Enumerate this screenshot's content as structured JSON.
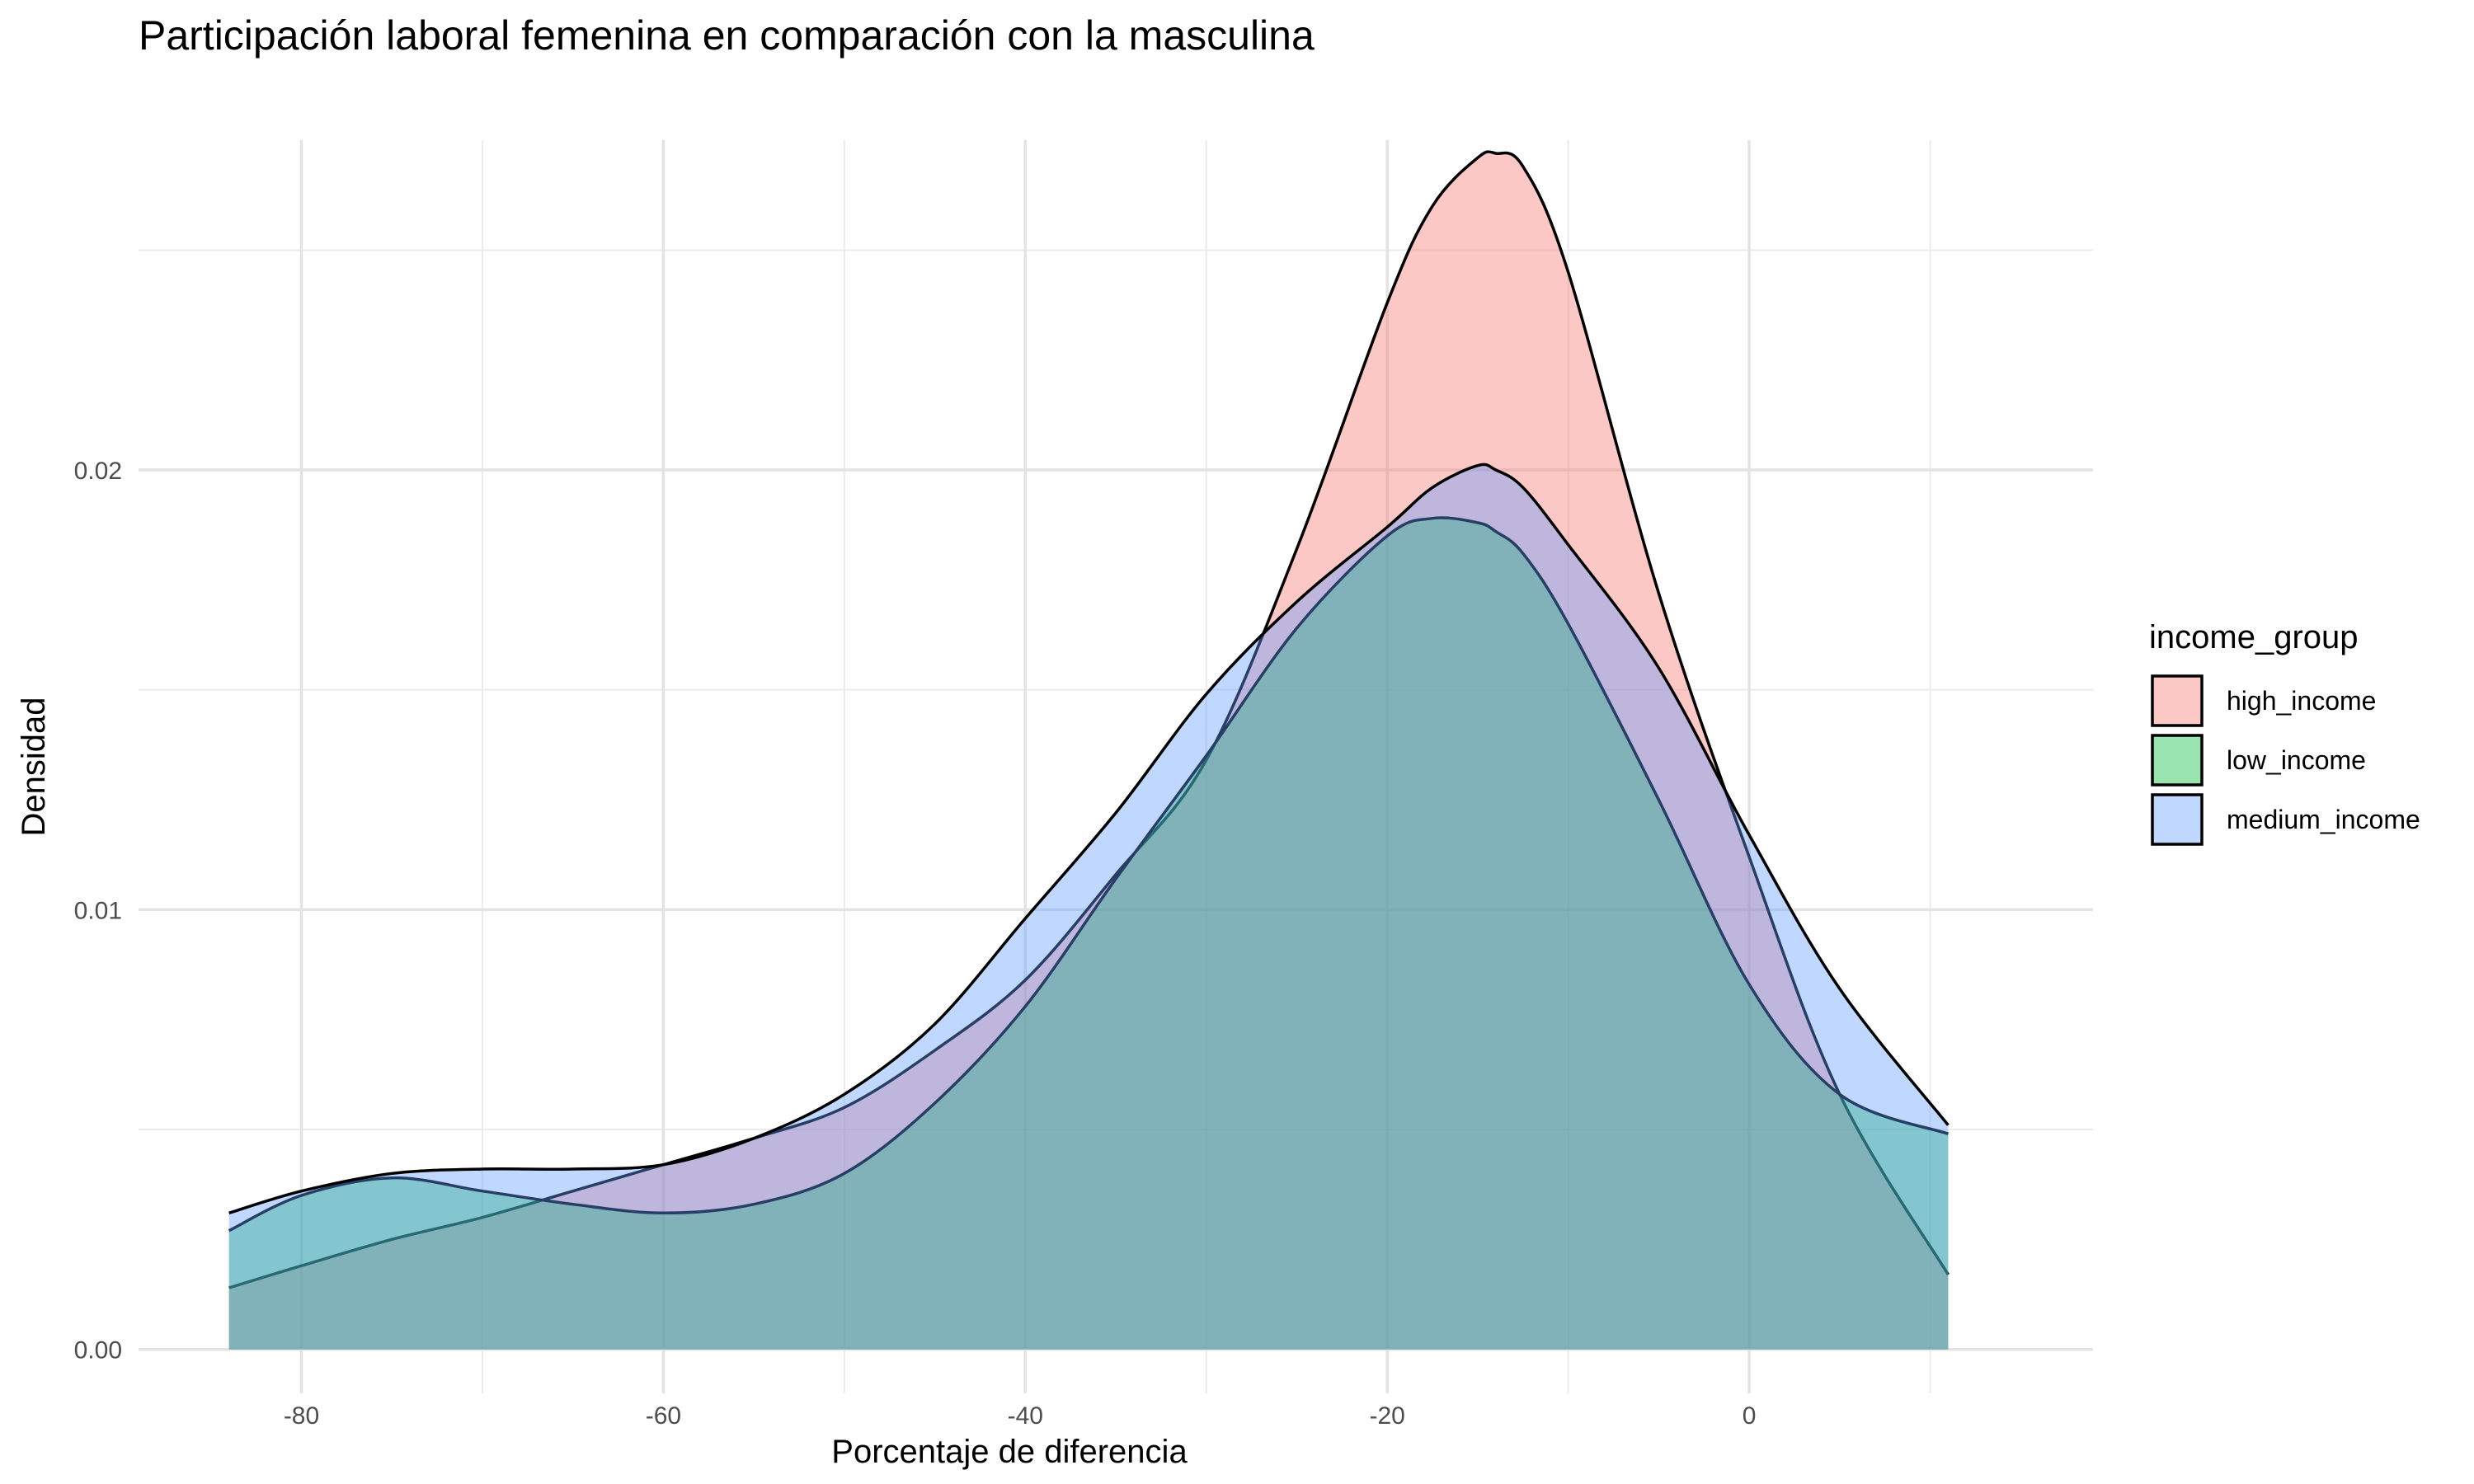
{
  "chart_data": {
    "type": "area",
    "title": "Participación laboral femenina en comparación con la masculina",
    "xlabel": "Porcentaje de diferencia",
    "ylabel": "Densidad",
    "xlim": [
      -89,
      19
    ],
    "ylim": [
      -0.001,
      0.0275
    ],
    "x_ticks": [
      -80,
      -60,
      -40,
      -20,
      0
    ],
    "x_tick_labels": [
      "-80",
      "-60",
      "-40",
      "-20",
      "0"
    ],
    "y_ticks": [
      0,
      0.01,
      0.02
    ],
    "y_tick_labels": [
      "0.00",
      "0.01",
      "0.02"
    ],
    "grid": true,
    "legend": {
      "title": "income_group",
      "position": "right",
      "entries": [
        "high_income",
        "low_income",
        "medium_income"
      ]
    },
    "fill_opacity": 0.4,
    "x": [
      -84,
      -80,
      -75,
      -70,
      -65,
      -60,
      -55,
      -50,
      -45,
      -40,
      -35,
      -30,
      -25,
      -20,
      -17.5,
      -15,
      -14,
      -12.5,
      -10,
      -5,
      0,
      5,
      11
    ],
    "series": [
      {
        "name": "high_income",
        "color": "#F8766D",
        "values": [
          0.0014,
          0.0019,
          0.0025,
          0.003,
          0.0036,
          0.0042,
          0.0048,
          0.0055,
          0.0068,
          0.0084,
          0.0108,
          0.0134,
          0.0182,
          0.0238,
          0.026,
          0.0271,
          0.0272,
          0.0269,
          0.0245,
          0.0172,
          0.0112,
          0.0058,
          0.0017
        ]
      },
      {
        "name": "low_income",
        "color": "#00BA38",
        "values": [
          0.0027,
          0.0035,
          0.0039,
          0.0036,
          0.0033,
          0.0031,
          0.0033,
          0.004,
          0.0056,
          0.0078,
          0.0107,
          0.0135,
          0.0164,
          0.0185,
          0.0189,
          0.0188,
          0.0186,
          0.0181,
          0.0165,
          0.0125,
          0.0083,
          0.0058,
          0.0049
        ]
      },
      {
        "name": "medium_income",
        "color": "#619CFF",
        "values": [
          0.0031,
          0.0036,
          0.004,
          0.0041,
          0.0041,
          0.0042,
          0.0048,
          0.0058,
          0.0074,
          0.0098,
          0.0122,
          0.0149,
          0.017,
          0.0187,
          0.0196,
          0.0201,
          0.02,
          0.0196,
          0.0183,
          0.0155,
          0.0117,
          0.0082,
          0.0051
        ]
      }
    ]
  }
}
